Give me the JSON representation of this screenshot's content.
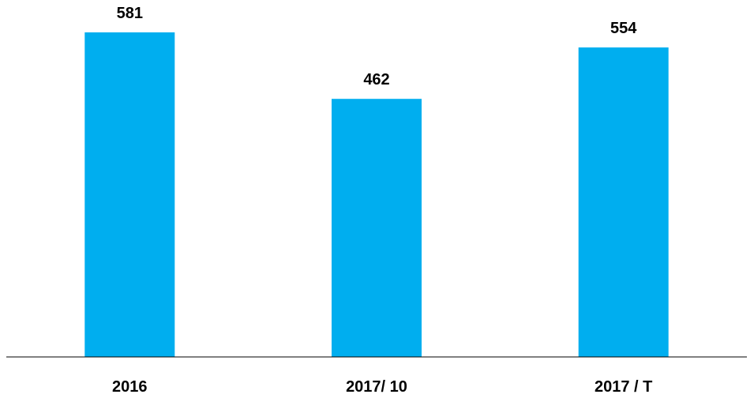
{
  "chart_data": {
    "type": "bar",
    "categories": [
      "2016",
      "2017/ 10",
      "2017 / T"
    ],
    "values": [
      581,
      462,
      554
    ],
    "value_labels": [
      "581",
      "462",
      "554"
    ],
    "title": "",
    "xlabel": "",
    "ylabel": "",
    "ylim": [
      0,
      600
    ],
    "grid": false,
    "legend": "none",
    "bar_color": "#00AEEF",
    "axis_color": "#000000"
  }
}
